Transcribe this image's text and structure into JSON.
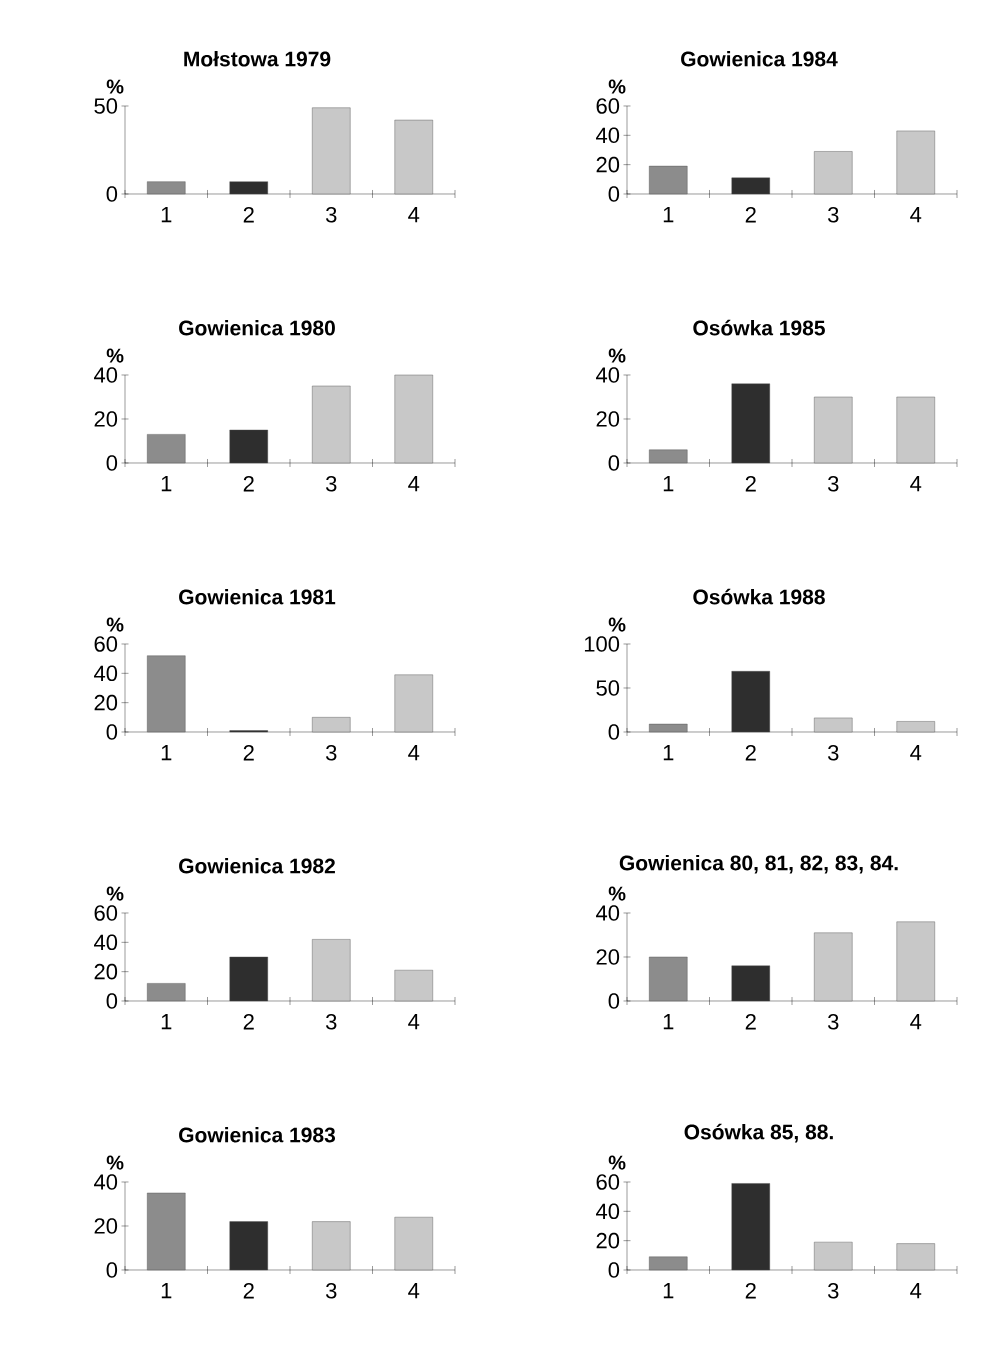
{
  "chart_data": [
    {
      "type": "bar",
      "title": "Mołstowa 1979",
      "ylabel": "%",
      "categories": [
        "1",
        "2",
        "3",
        "4"
      ],
      "values": [
        7,
        7,
        49,
        42
      ],
      "colors": [
        "#8c8c8c",
        "#2e2e2e",
        "#c8c8c8",
        "#c8c8c8"
      ],
      "ylim": [
        0,
        50
      ],
      "yticks": [
        0,
        50
      ]
    },
    {
      "type": "bar",
      "title": "Gowienica 1984",
      "ylabel": "%",
      "categories": [
        "1",
        "2",
        "3",
        "4"
      ],
      "values": [
        19,
        11,
        29,
        43
      ],
      "colors": [
        "#8c8c8c",
        "#2e2e2e",
        "#c8c8c8",
        "#c8c8c8"
      ],
      "ylim": [
        0,
        60
      ],
      "yticks": [
        0,
        20,
        40,
        60
      ]
    },
    {
      "type": "bar",
      "title": "Gowienica 1980",
      "ylabel": "%",
      "categories": [
        "1",
        "2",
        "3",
        "4"
      ],
      "values": [
        13,
        15,
        35,
        40
      ],
      "colors": [
        "#8c8c8c",
        "#2e2e2e",
        "#c8c8c8",
        "#c8c8c8"
      ],
      "ylim": [
        0,
        40
      ],
      "yticks": [
        0,
        20,
        40
      ]
    },
    {
      "type": "bar",
      "title": "Osówka 1985",
      "ylabel": "%",
      "categories": [
        "1",
        "2",
        "3",
        "4"
      ],
      "values": [
        6,
        36,
        30,
        30
      ],
      "colors": [
        "#8c8c8c",
        "#2e2e2e",
        "#c8c8c8",
        "#c8c8c8"
      ],
      "ylim": [
        0,
        40
      ],
      "yticks": [
        0,
        20,
        40
      ]
    },
    {
      "type": "bar",
      "title": "Gowienica 1981",
      "ylabel": "%",
      "categories": [
        "1",
        "2",
        "3",
        "4"
      ],
      "values": [
        52,
        1,
        10,
        39
      ],
      "colors": [
        "#8c8c8c",
        "#2e2e2e",
        "#c8c8c8",
        "#c8c8c8"
      ],
      "ylim": [
        0,
        60
      ],
      "yticks": [
        0,
        20,
        40,
        60
      ]
    },
    {
      "type": "bar",
      "title": "Osówka 1988",
      "ylabel": "%",
      "categories": [
        "1",
        "2",
        "3",
        "4"
      ],
      "values": [
        9,
        69,
        16,
        12
      ],
      "colors": [
        "#8c8c8c",
        "#2e2e2e",
        "#c8c8c8",
        "#c8c8c8"
      ],
      "ylim": [
        0,
        100
      ],
      "yticks": [
        0,
        50,
        100
      ]
    },
    {
      "type": "bar",
      "title": "Gowienica 1982",
      "ylabel": "%",
      "categories": [
        "1",
        "2",
        "3",
        "4"
      ],
      "values": [
        12,
        30,
        42,
        21
      ],
      "colors": [
        "#8c8c8c",
        "#2e2e2e",
        "#c8c8c8",
        "#c8c8c8"
      ],
      "ylim": [
        0,
        60
      ],
      "yticks": [
        0,
        20,
        40,
        60
      ]
    },
    {
      "type": "bar",
      "title": "Gowienica 80, 81, 82, 83, 84.",
      "ylabel": "%",
      "categories": [
        "1",
        "2",
        "3",
        "4"
      ],
      "values": [
        20,
        16,
        31,
        36
      ],
      "colors": [
        "#8c8c8c",
        "#2e2e2e",
        "#c8c8c8",
        "#c8c8c8"
      ],
      "ylim": [
        0,
        40
      ],
      "yticks": [
        0,
        20,
        40
      ]
    },
    {
      "type": "bar",
      "title": "Gowienica 1983",
      "ylabel": "%",
      "categories": [
        "1",
        "2",
        "3",
        "4"
      ],
      "values": [
        35,
        22,
        22,
        24
      ],
      "colors": [
        "#8c8c8c",
        "#2e2e2e",
        "#c8c8c8",
        "#c8c8c8"
      ],
      "ylim": [
        0,
        40
      ],
      "yticks": [
        0,
        20,
        40
      ]
    },
    {
      "type": "bar",
      "title": "Osówka 85, 88.",
      "ylabel": "%",
      "categories": [
        "1",
        "2",
        "3",
        "4"
      ],
      "values": [
        9,
        59,
        19,
        18
      ],
      "colors": [
        "#8c8c8c",
        "#2e2e2e",
        "#c8c8c8",
        "#c8c8c8"
      ],
      "ylim": [
        0,
        60
      ],
      "yticks": [
        0,
        20,
        40,
        60
      ]
    }
  ]
}
